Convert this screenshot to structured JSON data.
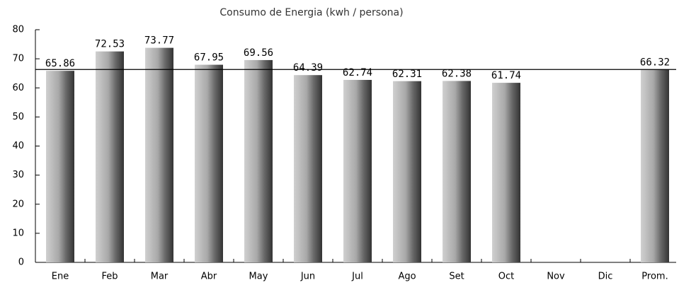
{
  "chart_data": {
    "type": "bar",
    "title": "Consumo de Energia (kwh / persona)",
    "categories": [
      "Ene",
      "Feb",
      "Mar",
      "Abr",
      "May",
      "Jun",
      "Jul",
      "Ago",
      "Set",
      "Oct",
      "Nov",
      "Dic",
      "Prom."
    ],
    "values": [
      65.86,
      72.53,
      73.77,
      67.95,
      69.56,
      64.39,
      62.74,
      62.31,
      62.38,
      61.74,
      null,
      null,
      66.32
    ],
    "color": "#9a9a9a",
    "ylim": [
      0,
      80
    ],
    "yticks": [
      0,
      10,
      20,
      30,
      40,
      50,
      60,
      70,
      80
    ],
    "grid": false
  }
}
